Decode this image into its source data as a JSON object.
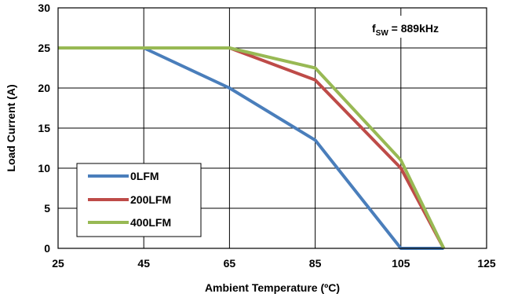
{
  "chart_data": {
    "type": "line",
    "xlabel": "Ambient Temperature (ºC)",
    "ylabel": "Load Current (A)",
    "xlim": [
      25,
      125
    ],
    "ylim": [
      0,
      30
    ],
    "x_ticks": [
      "25",
      "45",
      "65",
      "85",
      "105",
      "125"
    ],
    "y_ticks": [
      "0",
      "5",
      "10",
      "15",
      "20",
      "25",
      "30"
    ],
    "grid": true,
    "legend_position": "bottom-left",
    "annotation": {
      "prefix": "f",
      "subscript": "SW",
      "suffix": " = 889kHz"
    },
    "series": [
      {
        "name": "0LFM",
        "color": "#4a7ebb",
        "x": [
          25,
          45,
          65,
          85,
          105,
          115
        ],
        "y": [
          25,
          25,
          20,
          13.5,
          0,
          0
        ]
      },
      {
        "name": "200LFM",
        "color": "#be4b48",
        "x": [
          25,
          65,
          85,
          105,
          115
        ],
        "y": [
          25,
          25,
          21,
          10,
          0
        ]
      },
      {
        "name": "400LFM",
        "color": "#98b954",
        "x": [
          25,
          65,
          85,
          105,
          115
        ],
        "y": [
          25,
          25,
          22.5,
          11,
          0
        ]
      }
    ]
  }
}
